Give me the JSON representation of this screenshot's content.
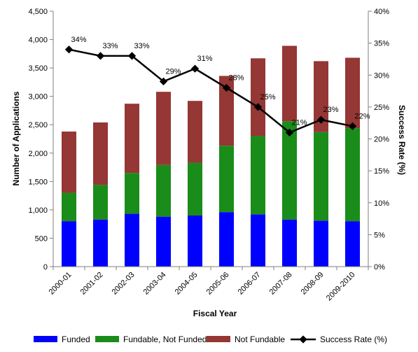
{
  "chart_data": {
    "type": "bar",
    "stacked": true,
    "categories": [
      "2000-01",
      "2001-02",
      "2002-03",
      "2003-04",
      "2004-05",
      "2005-06",
      "2006-07",
      "2007-08",
      "2008-09",
      "2009-2010"
    ],
    "series": [
      {
        "name": "Funded",
        "color": "#0000FF",
        "values": [
          800,
          830,
          930,
          880,
          900,
          960,
          920,
          830,
          810,
          800
        ]
      },
      {
        "name": "Fundable, Not Funded",
        "color": "#1A8C1A",
        "values": [
          500,
          610,
          720,
          910,
          930,
          1170,
          1380,
          1730,
          1560,
          1640
        ]
      },
      {
        "name": "Not Fundable",
        "color": "#953735",
        "values": [
          1080,
          1100,
          1220,
          1290,
          1090,
          1230,
          1370,
          1330,
          1250,
          1240
        ]
      }
    ],
    "line_series": {
      "name": "Success Rate (%)",
      "color": "#000000",
      "axis": "right",
      "values": [
        34,
        33,
        33,
        29,
        31,
        28,
        25,
        21,
        23,
        22
      ],
      "labels": [
        "34%",
        "33%",
        "33%",
        "29%",
        "31%",
        "28%",
        "25%",
        "21%",
        "23%",
        "22%"
      ]
    },
    "xlabel": "Fiscal Year",
    "ylabel": "Number of Applications",
    "y2label": "Success Rate (%)",
    "ylim": [
      0,
      4500
    ],
    "y2lim": [
      0,
      40
    ],
    "yticks": [
      "0",
      "500",
      "1,000",
      "1,500",
      "2,000",
      "2,500",
      "3,000",
      "3,500",
      "4,000",
      "4,500"
    ],
    "y2ticks": [
      "0%",
      "5%",
      "10%",
      "15%",
      "20%",
      "25%",
      "30%",
      "35%",
      "40%"
    ],
    "grid": false,
    "legend_position": "bottom"
  }
}
